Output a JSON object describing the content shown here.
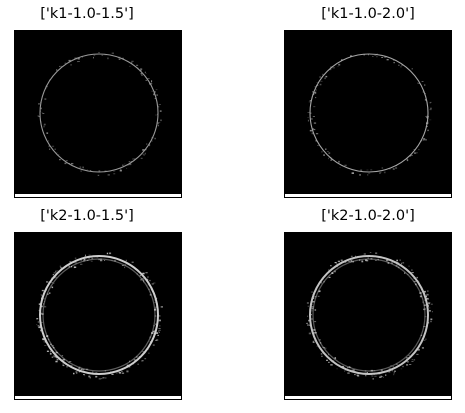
{
  "panels": [
    {
      "title": "['k1-1.0-1.5']",
      "ring_color": "#9a9a9a",
      "style": "thin"
    },
    {
      "title": "['k1-1.0-2.0']",
      "ring_color": "#a6a6a6",
      "style": "thin"
    },
    {
      "title": "['k2-1.0-1.5']",
      "ring_color": "#cfcfcf",
      "style": "thick"
    },
    {
      "title": "['k2-1.0-2.0']",
      "ring_color": "#c4c4c4",
      "style": "thick"
    }
  ]
}
